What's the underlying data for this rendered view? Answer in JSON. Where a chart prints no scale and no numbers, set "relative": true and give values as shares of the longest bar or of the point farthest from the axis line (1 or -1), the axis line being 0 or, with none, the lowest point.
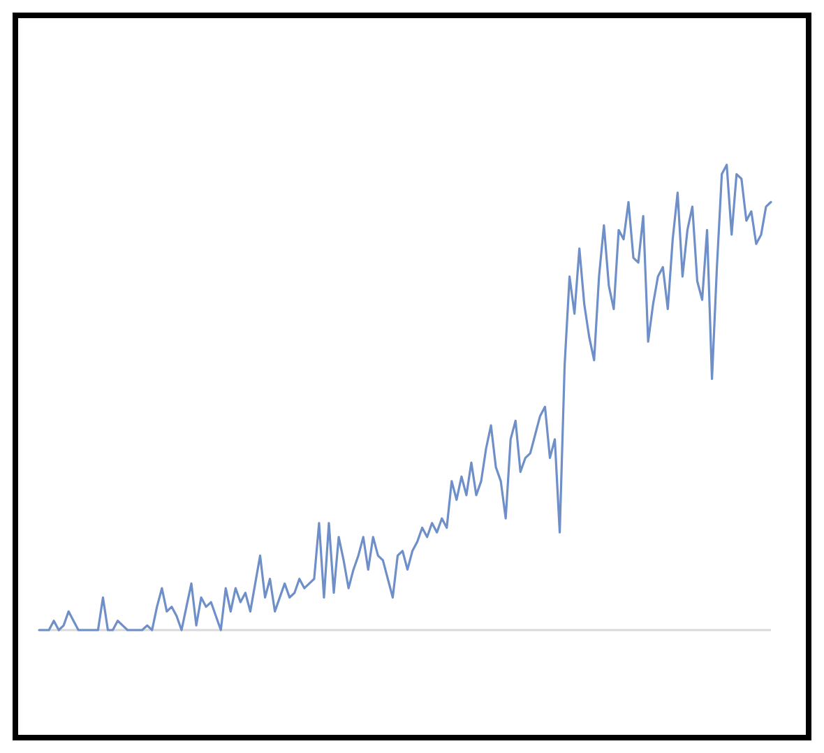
{
  "chart_data": {
    "type": "line",
    "relative": true,
    "color": "#6f8fc8",
    "categories": [
      null,
      null,
      null,
      null,
      null,
      null,
      null,
      null,
      null,
      null,
      null,
      null,
      null,
      null,
      null,
      null,
      null,
      null,
      null,
      null,
      null,
      null,
      null,
      null,
      null,
      null,
      null,
      null,
      null,
      null,
      null,
      null,
      null,
      null,
      null,
      null,
      null,
      null,
      null,
      null,
      null,
      null,
      null,
      null,
      null,
      null,
      null,
      null,
      null,
      null,
      null,
      null,
      null,
      null,
      null,
      null,
      null,
      null,
      null,
      null,
      null,
      null,
      null,
      null,
      null,
      null,
      null,
      null,
      null,
      null,
      null,
      null,
      null,
      null,
      null,
      null,
      null,
      null,
      null,
      null,
      null,
      null,
      null,
      null,
      null,
      null,
      null,
      null,
      null,
      null,
      null,
      null,
      null,
      null,
      null,
      null,
      null,
      null,
      null,
      null,
      null,
      null,
      null,
      null,
      null,
      null,
      null,
      null,
      null,
      null,
      null,
      null,
      null,
      null,
      null,
      null,
      null,
      null,
      null,
      null,
      null,
      null,
      null,
      null,
      null,
      null,
      null,
      null,
      null,
      null,
      null,
      null,
      null,
      null,
      null,
      null,
      null,
      null,
      null,
      null,
      null,
      null,
      null,
      null,
      null,
      null,
      null,
      null,
      null,
      null
    ],
    "values": [
      0,
      0,
      0,
      0.02,
      0,
      0.01,
      0.04,
      0.02,
      0,
      0,
      0,
      0,
      0,
      0.07,
      0,
      0,
      0.02,
      0.01,
      0,
      0,
      0,
      0,
      0.01,
      0,
      0.05,
      0.09,
      0.04,
      0.05,
      0.03,
      0,
      0.05,
      0.1,
      0.01,
      0.07,
      0.05,
      0.06,
      0.03,
      0,
      0.09,
      0.04,
      0.09,
      0.06,
      0.08,
      0.04,
      0.1,
      0.16,
      0.07,
      0.11,
      0.04,
      0.07,
      0.1,
      0.07,
      0.08,
      0.11,
      0.09,
      0.1,
      0.11,
      0.23,
      0.07,
      0.23,
      0.08,
      0.2,
      0.15,
      0.09,
      0.13,
      0.16,
      0.2,
      0.13,
      0.2,
      0.16,
      0.15,
      0.11,
      0.07,
      0.16,
      0.17,
      0.13,
      0.17,
      0.19,
      0.22,
      0.2,
      0.23,
      0.21,
      0.24,
      0.22,
      0.32,
      0.28,
      0.33,
      0.29,
      0.36,
      0.29,
      0.32,
      0.39,
      0.44,
      0.35,
      0.32,
      0.24,
      0.41,
      0.45,
      0.34,
      0.37,
      0.38,
      0.42,
      0.46,
      0.48,
      0.37,
      0.41,
      0.21,
      0.57,
      0.76,
      0.68,
      0.82,
      0.7,
      0.63,
      0.58,
      0.76,
      0.87,
      0.74,
      0.69,
      0.86,
      0.84,
      0.92,
      0.8,
      0.79,
      0.89,
      0.62,
      0.7,
      0.76,
      0.78,
      0.69,
      0.84,
      0.94,
      0.76,
      0.86,
      0.91,
      0.75,
      0.71,
      0.86,
      0.54,
      0.78,
      0.98,
      1,
      0.85,
      0.98,
      0.97,
      0.88,
      0.9,
      0.83,
      0.85,
      0.91,
      0.92
    ]
  }
}
